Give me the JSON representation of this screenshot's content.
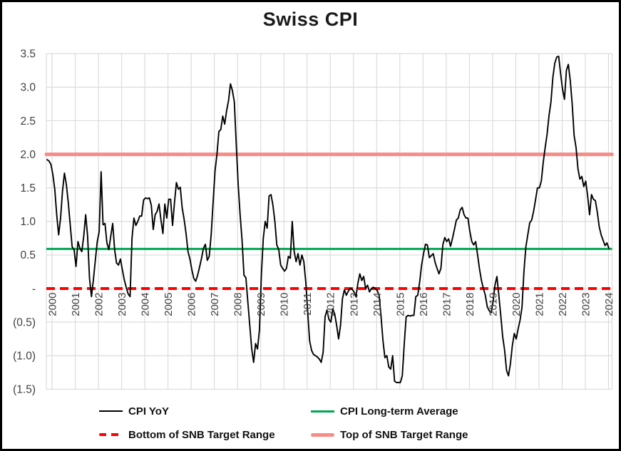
{
  "title": "Swiss CPI",
  "colors": {
    "cpi_line": "#000000",
    "average_line": "#00A652",
    "bottom_line": "#FF0000",
    "top_line": "#F68C87",
    "gridline": "#D9D9D9",
    "axis_text": "#404040",
    "title_text": "#1a1a1a"
  },
  "legend": {
    "items": [
      {
        "label": "CPI YoY",
        "style": "thin-solid",
        "color": "#000000"
      },
      {
        "label": "CPI Long-term Average",
        "style": "solid",
        "color": "#00A652"
      },
      {
        "label": "Bottom of SNB Target Range",
        "style": "dashed",
        "color": "#FF0000"
      },
      {
        "label": "Top of SNB Target Range",
        "style": "thick-solid",
        "color": "#F68C87"
      }
    ]
  },
  "chart_data": {
    "type": "line",
    "title": "Swiss CPI",
    "frequency": "monthly",
    "x_start": "2000-01",
    "x_end": "2024-04",
    "ylim": [
      -1.5,
      3.5
    ],
    "grid": true,
    "legend_position": "bottom",
    "x_tick_labels": [
      "2000",
      "2001",
      "2002",
      "2003",
      "2004",
      "2005",
      "2006",
      "2007",
      "2008",
      "2009",
      "2010",
      "2011",
      "2012",
      "2013",
      "2014",
      "2015",
      "2016",
      "2017",
      "2018",
      "2019",
      "2020",
      "2021",
      "2022",
      "2023",
      "2024"
    ],
    "y_ticks": [
      {
        "label": "3.5",
        "value": 3.5
      },
      {
        "label": "3.0",
        "value": 3.0
      },
      {
        "label": "2.5",
        "value": 2.5
      },
      {
        "label": "2.0",
        "value": 2.0
      },
      {
        "label": "1.5",
        "value": 1.5
      },
      {
        "label": "1.0",
        "value": 1.0
      },
      {
        "label": "0.5",
        "value": 0.5
      },
      {
        "label": "-",
        "value": 0.0
      },
      {
        "label": "(0.5)",
        "value": -0.5
      },
      {
        "label": "(1.0)",
        "value": -1.0
      },
      {
        "label": "(1.5)",
        "value": -1.5
      }
    ],
    "series": [
      {
        "name": "CPI YoY",
        "style": "thin-solid",
        "color": "#000000",
        "values": [
          1.92,
          1.9,
          1.85,
          1.7,
          1.48,
          1.1,
          0.8,
          1.05,
          1.45,
          1.72,
          1.55,
          1.28,
          0.95,
          0.62,
          0.58,
          0.33,
          0.7,
          0.6,
          0.55,
          0.78,
          1.1,
          0.78,
          0.15,
          -0.12,
          0.13,
          0.42,
          0.7,
          0.85,
          1.74,
          0.95,
          0.97,
          0.68,
          0.58,
          0.78,
          0.97,
          0.58,
          0.38,
          0.35,
          0.44,
          0.28,
          0.13,
          0.02,
          -0.08,
          -0.12,
          0.75,
          1.05,
          0.94,
          1.0,
          1.08,
          1.08,
          1.32,
          1.35,
          1.34,
          1.35,
          1.24,
          0.88,
          1.1,
          1.15,
          1.26,
          1.02,
          0.82,
          1.26,
          1.05,
          1.33,
          1.33,
          0.94,
          1.28,
          1.58,
          1.48,
          1.51,
          1.2,
          1.03,
          0.82,
          0.55,
          0.44,
          0.28,
          0.15,
          0.11,
          0.2,
          0.32,
          0.45,
          0.6,
          0.66,
          0.42,
          0.48,
          0.8,
          1.28,
          1.75,
          2.0,
          2.34,
          2.37,
          2.57,
          2.45,
          2.65,
          2.8,
          3.05,
          2.95,
          2.78,
          2.15,
          1.55,
          1.1,
          0.72,
          0.2,
          0.16,
          -0.2,
          -0.55,
          -0.9,
          -1.1,
          -0.82,
          -0.9,
          -0.62,
          0.2,
          0.75,
          1.0,
          0.9,
          1.38,
          1.4,
          1.24,
          1.0,
          0.65,
          0.58,
          0.35,
          0.3,
          0.26,
          0.3,
          0.48,
          0.45,
          1.0,
          0.55,
          0.4,
          0.52,
          0.35,
          0.5,
          0.4,
          0.1,
          -0.35,
          -0.78,
          -0.92,
          -0.98,
          -1.0,
          -1.02,
          -1.05,
          -1.1,
          -0.95,
          -0.42,
          -0.32,
          -0.46,
          -0.5,
          -0.3,
          -0.38,
          -0.55,
          -0.75,
          -0.55,
          -0.15,
          -0.02,
          -0.1,
          -0.04,
          0.0,
          -0.01,
          -0.05,
          -0.12,
          0.08,
          0.22,
          0.12,
          0.18,
          0.0,
          0.05,
          -0.05,
          0.0,
          0.02,
          0.0,
          -0.03,
          -0.1,
          -0.42,
          -0.78,
          -1.03,
          -1.0,
          -1.17,
          -1.2,
          -1.0,
          -1.38,
          -1.4,
          -1.4,
          -1.4,
          -1.3,
          -0.83,
          -0.42,
          -0.4,
          -0.41,
          -0.4,
          -0.4,
          -0.12,
          -0.1,
          0.1,
          0.35,
          0.52,
          0.66,
          0.65,
          0.46,
          0.49,
          0.52,
          0.39,
          0.3,
          0.22,
          0.3,
          0.65,
          0.76,
          0.7,
          0.74,
          0.63,
          0.75,
          0.88,
          1.02,
          1.05,
          1.17,
          1.21,
          1.1,
          1.05,
          1.05,
          0.85,
          0.7,
          0.65,
          0.7,
          0.5,
          0.29,
          0.12,
          0.0,
          -0.1,
          -0.27,
          -0.33,
          -0.36,
          -0.2,
          0.05,
          0.18,
          -0.1,
          -0.4,
          -0.72,
          -0.92,
          -1.22,
          -1.3,
          -1.12,
          -0.85,
          -0.67,
          -0.75,
          -0.6,
          -0.47,
          -0.28,
          0.25,
          0.62,
          0.8,
          0.98,
          1.02,
          1.15,
          1.32,
          1.5,
          1.5,
          1.6,
          1.88,
          2.1,
          2.3,
          2.58,
          2.78,
          3.15,
          3.36,
          3.45,
          3.46,
          3.2,
          2.97,
          2.82,
          3.25,
          3.34,
          3.1,
          2.75,
          2.28,
          2.1,
          1.78,
          1.63,
          1.67,
          1.52,
          1.6,
          1.38,
          1.1,
          1.4,
          1.33,
          1.31,
          1.14,
          0.92,
          0.8,
          0.72,
          0.64,
          0.68,
          0.6
        ]
      },
      {
        "name": "CPI Long-term Average",
        "style": "solid",
        "color": "#00A652",
        "constant": 0.59
      },
      {
        "name": "Bottom of SNB Target Range",
        "style": "dashed",
        "color": "#FF0000",
        "constant": 0.0
      },
      {
        "name": "Top of SNB Target Range",
        "style": "thick-solid",
        "color": "#F68C87",
        "constant": 2.0
      }
    ]
  }
}
